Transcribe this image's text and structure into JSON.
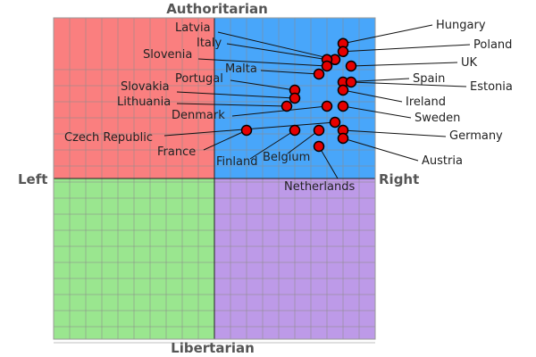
{
  "chart_data": {
    "type": "scatter",
    "chart_kind": "political-compass",
    "axes": {
      "top": "Authoritarian",
      "bottom": "Libertarian",
      "left": "Left",
      "right": "Right"
    },
    "xlim": [
      -10,
      10
    ],
    "ylim": [
      -10,
      10
    ],
    "grid": true,
    "quadrant_colors": {
      "authoritarian_left": "#fa7f7f",
      "authoritarian_right": "#48a6fa",
      "libertarian_left": "#9ae68f",
      "libertarian_right": "#bd9ae8"
    },
    "marker_color": "#e60000",
    "points": [
      {
        "name": "Hungary",
        "x": 8.0,
        "y": 8.4
      },
      {
        "name": "Poland",
        "x": 8.0,
        "y": 7.9
      },
      {
        "name": "Latvia",
        "x": 7.5,
        "y": 7.4
      },
      {
        "name": "Italy",
        "x": 7.0,
        "y": 7.4
      },
      {
        "name": "Slovenia",
        "x": 7.0,
        "y": 7.0
      },
      {
        "name": "UK",
        "x": 8.5,
        "y": 7.0
      },
      {
        "name": "Malta",
        "x": 6.5,
        "y": 6.5
      },
      {
        "name": "Spain",
        "x": 8.0,
        "y": 6.0
      },
      {
        "name": "Estonia",
        "x": 8.5,
        "y": 6.0
      },
      {
        "name": "Portugal",
        "x": 5.0,
        "y": 5.5
      },
      {
        "name": "Slovakia",
        "x": 5.0,
        "y": 5.0
      },
      {
        "name": "Ireland",
        "x": 8.0,
        "y": 5.5
      },
      {
        "name": "Lithuania",
        "x": 4.5,
        "y": 4.5
      },
      {
        "name": "Denmark",
        "x": 7.0,
        "y": 4.5
      },
      {
        "name": "Sweden",
        "x": 8.0,
        "y": 4.5
      },
      {
        "name": "Czech Republic",
        "x": 7.5,
        "y": 3.5
      },
      {
        "name": "Germany",
        "x": 8.0,
        "y": 3.0
      },
      {
        "name": "France",
        "x": 2.0,
        "y": 3.0
      },
      {
        "name": "Finland",
        "x": 5.0,
        "y": 3.0
      },
      {
        "name": "Belgium",
        "x": 6.5,
        "y": 3.0
      },
      {
        "name": "Austria",
        "x": 8.0,
        "y": 2.5
      },
      {
        "name": "Netherlands",
        "x": 6.5,
        "y": 2.0
      }
    ]
  }
}
